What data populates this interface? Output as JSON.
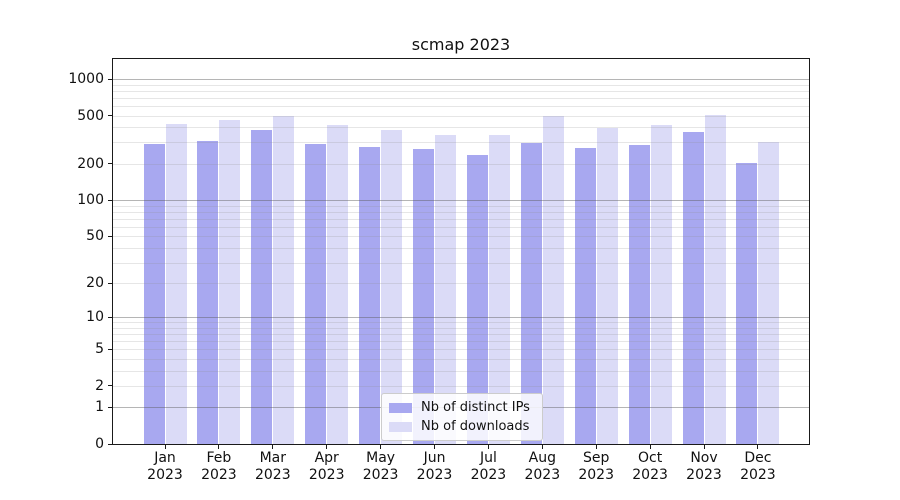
{
  "chart_data": {
    "type": "bar",
    "title": "scmap 2023",
    "categories": [
      "Jan 2023",
      "Feb 2023",
      "Mar 2023",
      "Apr 2023",
      "May 2023",
      "Jun 2023",
      "Jul 2023",
      "Aug 2023",
      "Sep 2023",
      "Oct 2023",
      "Nov 2023",
      "Dec 2023"
    ],
    "series": [
      {
        "name": "Nb of distinct IPs",
        "color": "#a8a8f0",
        "values": [
          292,
          309,
          378,
          292,
          276,
          266,
          237,
          296,
          271,
          287,
          364,
          204
        ]
      },
      {
        "name": "Nb of downloads",
        "color": "#dbdbf7",
        "values": [
          430,
          463,
          500,
          421,
          381,
          347,
          347,
          493,
          398,
          419,
          510,
          301
        ]
      }
    ],
    "yscale": "log10(value+1)",
    "yticks": [
      0,
      1,
      2,
      5,
      10,
      20,
      50,
      100,
      200,
      500,
      1000
    ],
    "major_grid_at": [
      1,
      10,
      100,
      1000
    ],
    "grid": "both",
    "ylim": [
      0,
      1460
    ],
    "legend_position": "lower center",
    "colors": {
      "major_gridline": "#b0b0b0",
      "minor_gridline": "#e2e2e2",
      "axis": "#1a1a1a",
      "background": "#ffffff"
    }
  }
}
